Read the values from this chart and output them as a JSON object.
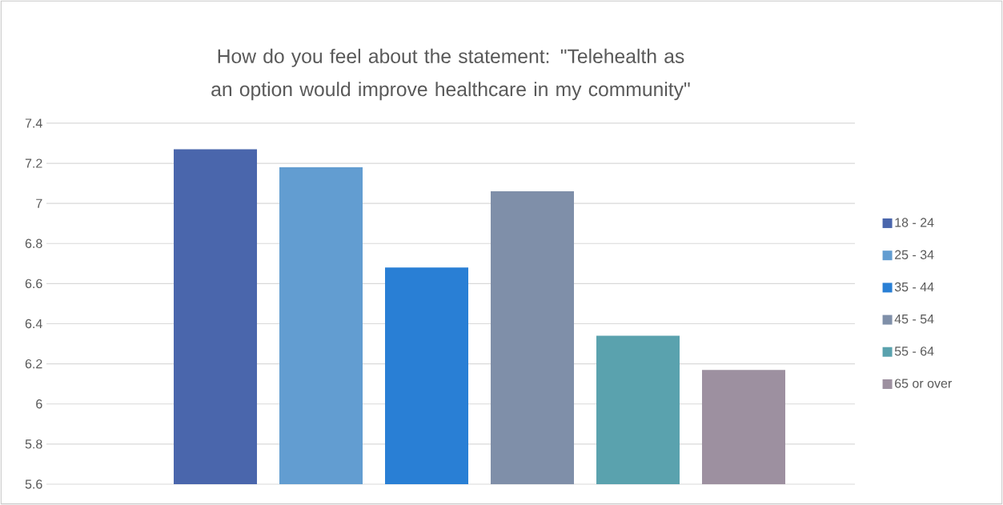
{
  "chart_data": {
    "type": "bar",
    "title": "How do you feel about the statement: \"Telehealth as an option would improve healthcare in my community\"",
    "categories": [
      null
    ],
    "series": [
      {
        "name": "18 - 24",
        "color": "#4a66ac",
        "values": [
          7.27
        ]
      },
      {
        "name": "25 - 34",
        "color": "#629dd1",
        "values": [
          7.18
        ]
      },
      {
        "name": "35 - 44",
        "color": "#297fd5",
        "values": [
          6.68
        ]
      },
      {
        "name": "45 - 54",
        "color": "#7f8fa9",
        "values": [
          7.06
        ]
      },
      {
        "name": "55 - 64",
        "color": "#5aa2ae",
        "values": [
          6.34
        ]
      },
      {
        "name": "65 or over",
        "color": "#9d90a0",
        "values": [
          6.17
        ]
      }
    ],
    "ylim": [
      5.6,
      7.4
    ],
    "yticks": [
      5.6,
      5.8,
      6,
      6.2,
      6.4,
      6.6,
      6.8,
      7,
      7.2,
      7.4
    ],
    "grid": "y",
    "legend": "right"
  }
}
